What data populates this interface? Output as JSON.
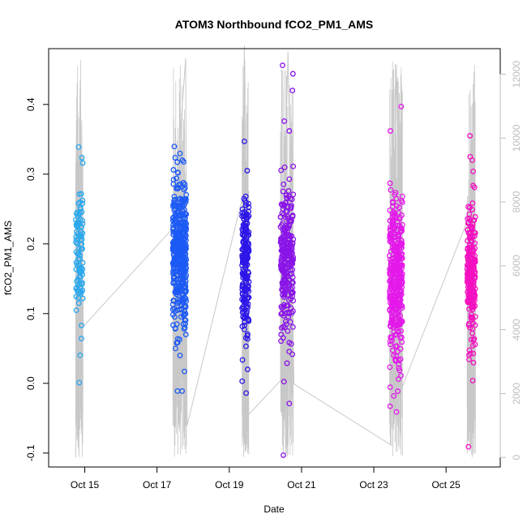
{
  "chart_data": {
    "type": "scatter",
    "title": "ATOM3 Northbound fCO2_PM1_AMS",
    "xlabel": "Date",
    "ylabel": "fCO2_PM1_AMS",
    "xlim": [
      "2016-10-14T00:00",
      "2016-10-26T12:00"
    ],
    "ylim": [
      -0.12,
      0.48
    ],
    "x_ticks": [
      {
        "date": "2016-10-15T00:00",
        "label": "Oct 15"
      },
      {
        "date": "2016-10-17T00:00",
        "label": "Oct 17"
      },
      {
        "date": "2016-10-19T00:00",
        "label": "Oct 19"
      },
      {
        "date": "2016-10-21T00:00",
        "label": "Oct 21"
      },
      {
        "date": "2016-10-23T00:00",
        "label": "Oct 23"
      },
      {
        "date": "2016-10-25T00:00",
        "label": "Oct 25"
      }
    ],
    "y_ticks": [
      -0.1,
      0.0,
      0.1,
      0.2,
      0.3,
      0.4
    ],
    "y_tick_labels": [
      "-0.1",
      "0.0",
      "0.1",
      "0.2",
      "0.3",
      "0.4"
    ],
    "y2_ticks": [
      0,
      2000,
      4000,
      6000,
      8000,
      10000,
      12000
    ],
    "y2_tick_labels": [
      "0",
      "2000",
      "4000",
      "6000",
      "8000",
      "10000",
      "12000"
    ],
    "y2lim": [
      -300,
      12800
    ],
    "grid": false,
    "legend": "none",
    "point_style": "open-circle",
    "line_color": "#c8c8c8",
    "flights": [
      {
        "start": "2016-10-14T18:00",
        "end": "2016-10-14T22:48",
        "color": "#28a8ee",
        "center": 0.185,
        "spread": 0.05,
        "count": 90,
        "extra": [
          0.001,
          0.339,
          0.316,
          0.083,
          0.132,
          0.115,
          0.245
        ]
      },
      {
        "start": "2016-10-17T10:30",
        "end": "2016-10-17T19:30",
        "color": "#1c5af5",
        "center": 0.19,
        "spread": 0.05,
        "count": 420,
        "extra": [
          0.32,
          0.302,
          0.07,
          0.05,
          0.017,
          -0.011,
          0.058
        ]
      },
      {
        "start": "2016-10-19T08:30",
        "end": "2016-10-19T13:00",
        "color": "#2c16e8",
        "center": 0.17,
        "spread": 0.055,
        "count": 190,
        "extra": [
          0.347,
          0.305,
          -0.014,
          0.003,
          0.02
        ]
      },
      {
        "start": "2016-10-20T10:00",
        "end": "2016-10-20T18:30",
        "color": "#8a14e8",
        "center": 0.18,
        "spread": 0.055,
        "count": 260,
        "extra": [
          0.456,
          0.444,
          0.42,
          0.376,
          0.362,
          -0.029,
          -0.103,
          0.075
        ]
      },
      {
        "start": "2016-10-23T10:30",
        "end": "2016-10-23T19:00",
        "color": "#e419ea",
        "center": 0.15,
        "spread": 0.055,
        "count": 380,
        "extra": [
          0.397,
          0.362,
          0.287,
          0.262,
          -0.041,
          -0.018,
          0.011
        ]
      },
      {
        "start": "2016-10-25T14:00",
        "end": "2016-10-25T19:30",
        "color": "#f410c0",
        "center": 0.15,
        "spread": 0.045,
        "count": 230,
        "extra": [
          0.355,
          0.325,
          0.32,
          0.304,
          -0.091,
          0.004
        ]
      }
    ],
    "altitude_series": {
      "name": "",
      "axis": "right",
      "color": "#c8c8c8",
      "points": [
        {
          "x": "2016-10-14T18:00",
          "y": 0
        },
        {
          "x": "2016-10-14T21:00",
          "y": 11800
        },
        {
          "x": "2016-10-14T23:00",
          "y": 4100
        },
        {
          "x": "2016-10-17T11:00",
          "y": 7200
        },
        {
          "x": "2016-10-17T19:00",
          "y": 12500
        },
        {
          "x": "2016-10-17T20:00",
          "y": 1000
        },
        {
          "x": "2016-10-19T09:00",
          "y": 8200
        },
        {
          "x": "2016-10-19T10:00",
          "y": 12900
        },
        {
          "x": "2016-10-19T12:00",
          "y": 1300
        },
        {
          "x": "2016-10-20T10:00",
          "y": 2400
        },
        {
          "x": "2016-10-20T15:00",
          "y": 12700
        },
        {
          "x": "2016-10-20T19:00",
          "y": 2300
        },
        {
          "x": "2016-10-23T11:00",
          "y": 400
        },
        {
          "x": "2016-10-23T15:00",
          "y": 12300
        },
        {
          "x": "2016-10-23T18:00",
          "y": 2100
        },
        {
          "x": "2016-10-25T14:00",
          "y": 7400
        },
        {
          "x": "2016-10-25T19:00",
          "y": 1200
        }
      ]
    }
  }
}
